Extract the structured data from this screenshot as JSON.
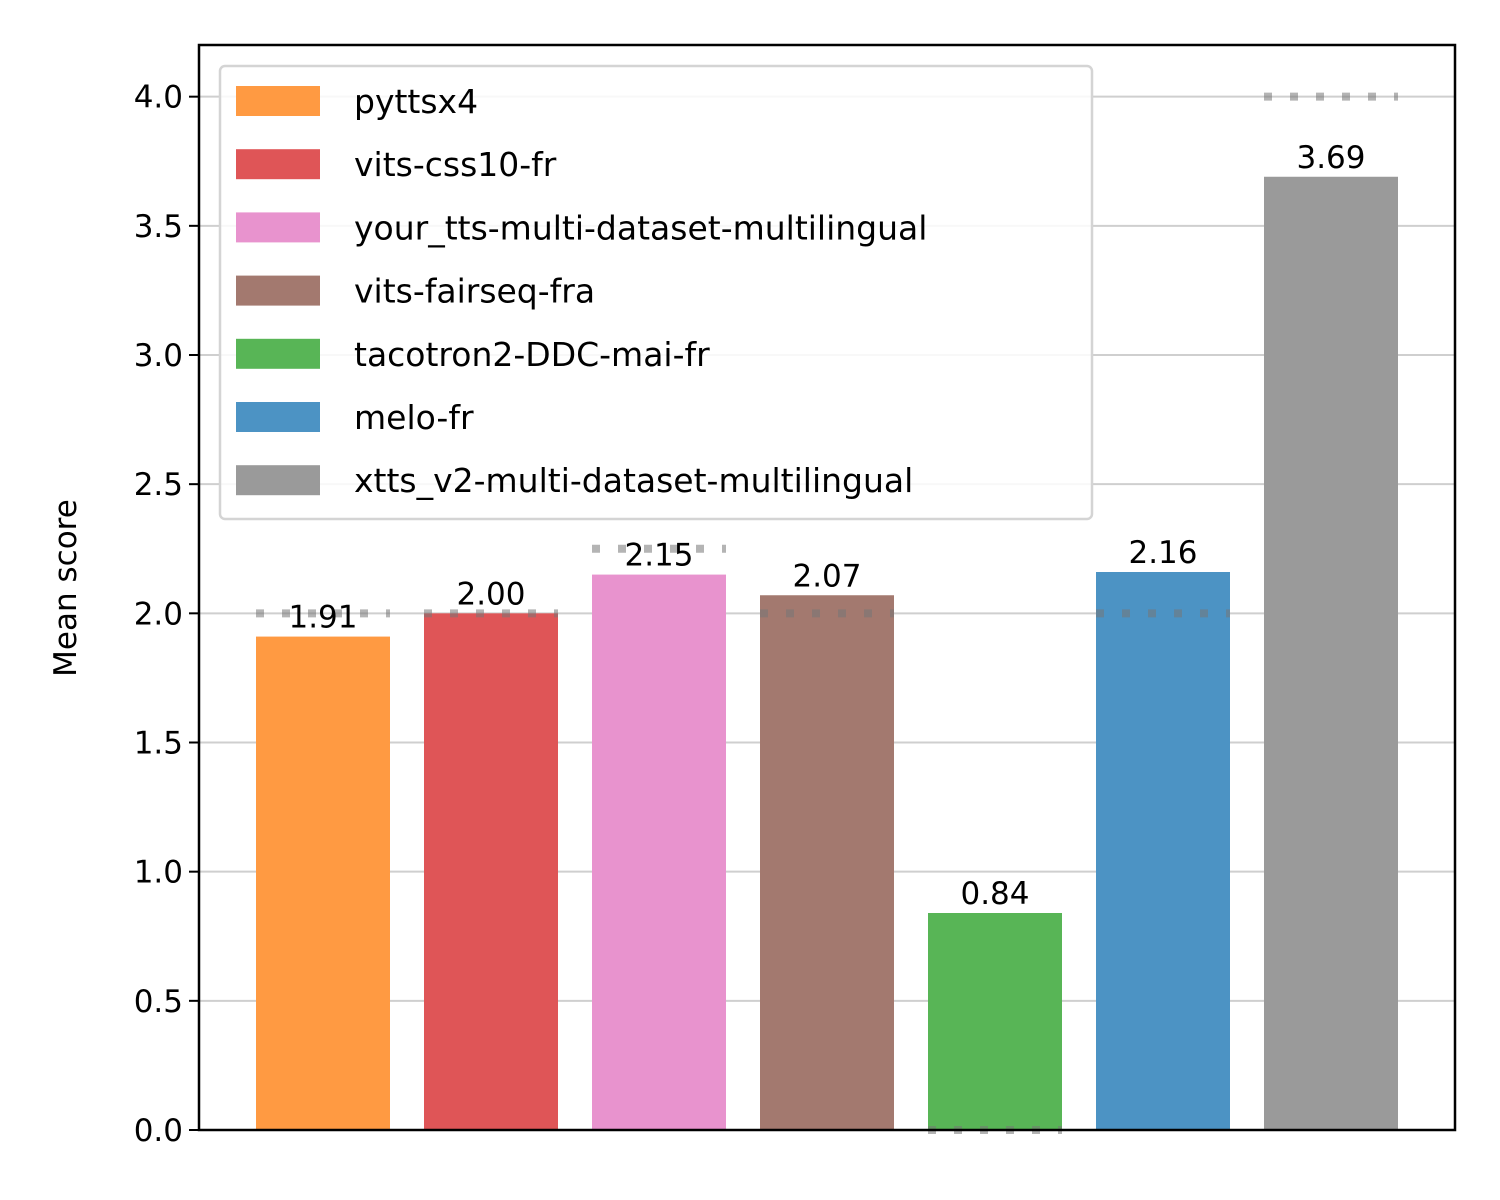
{
  "chart_data": {
    "type": "bar",
    "ylabel": "Mean score",
    "ylim": [
      0,
      4.2
    ],
    "yticks": [
      "0.0",
      "0.5",
      "1.0",
      "1.5",
      "2.0",
      "2.5",
      "3.0",
      "3.5",
      "4.0"
    ],
    "grid": "horizontal",
    "legend_placement": "top-left",
    "series": [
      {
        "name": "pyttsx4",
        "value": 1.91,
        "value_label": "1.91",
        "median": 2.0,
        "color": "#ff9a42"
      },
      {
        "name": "vits-css10-fr",
        "value": 2.0,
        "value_label": "2.00",
        "median": 2.0,
        "color": "#df5557"
      },
      {
        "name": "your_tts-multi-dataset-multilingual",
        "value": 2.15,
        "value_label": "2.15",
        "median": 2.25,
        "color": "#e893ce"
      },
      {
        "name": "vits-fairseq-fra",
        "value": 2.07,
        "value_label": "2.07",
        "median": 2.0,
        "color": "#a3796f"
      },
      {
        "name": "tacotron2-DDC-mai-fr",
        "value": 0.84,
        "value_label": "0.84",
        "median": 0.0,
        "color": "#58b556"
      },
      {
        "name": "melo-fr",
        "value": 2.16,
        "value_label": "2.16",
        "median": 2.0,
        "color": "#4c93c4"
      },
      {
        "name": "xtts_v2-multi-dataset-multilingual",
        "value": 3.69,
        "value_label": "3.69",
        "median": 4.0,
        "color": "#9a9a9a"
      }
    ]
  }
}
